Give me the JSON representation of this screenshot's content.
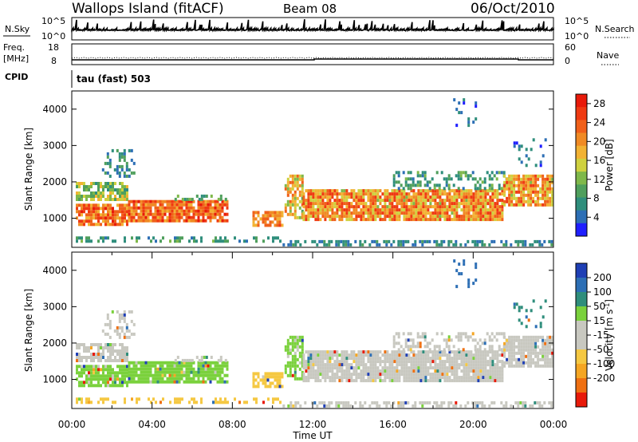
{
  "header": {
    "title": "Wallops Island (fitACF)",
    "beam": "Beam 08",
    "date": "06/Oct/2010"
  },
  "strips": {
    "nsky_label": "N.Sky",
    "nsky_ticks": [
      "10^5",
      "10^0"
    ],
    "nsearch_label": "N.Search",
    "freq_label_1": "Freq.",
    "freq_label_2": "[MHz]",
    "freq_ticks": [
      "18",
      "8"
    ],
    "nave_label": "Nave",
    "nave_ticks": [
      "60",
      "0"
    ],
    "cpid_label": "CPID",
    "cpid_text": "tau (fast) 503"
  },
  "chart_data": [
    {
      "type": "heatmap",
      "name": "Power",
      "xlabel": "",
      "ylabel": "Slant Range [km]",
      "xlim": [
        0,
        24
      ],
      "ylim": [
        200,
        4500
      ],
      "y_ticks": [
        "1000",
        "2000",
        "3000",
        "4000"
      ],
      "colorbar_label": "Power [dB]",
      "colorbar_ticks": [
        "28",
        "24",
        "20",
        "16",
        "12",
        "8",
        "4"
      ],
      "colorbar_range": [
        0,
        30
      ]
    },
    {
      "type": "heatmap",
      "name": "Velocity",
      "xlabel": "Time UT",
      "ylabel": "Slant Range [km]",
      "xlim": [
        0,
        24
      ],
      "ylim": [
        200,
        4500
      ],
      "x_ticks": [
        "00:00",
        "04:00",
        "08:00",
        "12:00",
        "16:00",
        "20:00",
        "00:00"
      ],
      "y_ticks": [
        "1000",
        "2000",
        "3000",
        "4000"
      ],
      "colorbar_label": "Velocity [m s^-1]",
      "colorbar_ticks": [
        "200",
        "100",
        "50",
        "15",
        "-15",
        "-50",
        "-100",
        "-200"
      ]
    }
  ],
  "colors": {
    "power_scale": [
      "#1f1fff",
      "#2d6fb5",
      "#2f8e7c",
      "#4f9f5c",
      "#7fb84a",
      "#cfd13f",
      "#f2b233",
      "#f08a24",
      "#f0601a",
      "#ef3a12",
      "#e81a0a"
    ],
    "velocity_scale": [
      "#e81a0a",
      "#ef7012",
      "#f5a623",
      "#f5c842",
      "#c8c8c0",
      "#c8c8c0",
      "#7ad13c",
      "#2f8e7c",
      "#2d6fb5",
      "#1f3fb5"
    ]
  }
}
